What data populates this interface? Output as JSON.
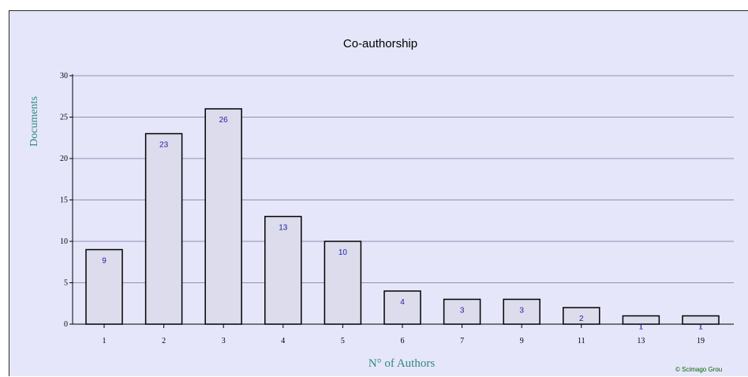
{
  "chart_data": {
    "type": "bar",
    "title": "Co-authorship",
    "xlabel": "N° of Authors",
    "ylabel": "Documents",
    "categories": [
      "1",
      "2",
      "3",
      "4",
      "5",
      "6",
      "7",
      "9",
      "11",
      "13",
      "19"
    ],
    "values": [
      9,
      23,
      26,
      13,
      10,
      4,
      3,
      3,
      2,
      1,
      1
    ],
    "data_labels": [
      "9",
      "23",
      "26",
      "13",
      "10",
      "4",
      "3",
      "3",
      "2",
      "1",
      "1"
    ],
    "y_ticks": [
      "0",
      "5",
      "10",
      "15",
      "20",
      "25",
      "30"
    ],
    "ylim": [
      0,
      30
    ],
    "grid": true,
    "legend": "none"
  },
  "credit": "© Scimago Grou",
  "colors": {
    "background": "#e6e6fa",
    "bar_fill": "#dcdcec",
    "bar_stroke": "#000000",
    "gridline": "#8e8eb6",
    "axis_label": "#2e8b7a",
    "data_label": "#2222aa",
    "credit": "#006400"
  }
}
